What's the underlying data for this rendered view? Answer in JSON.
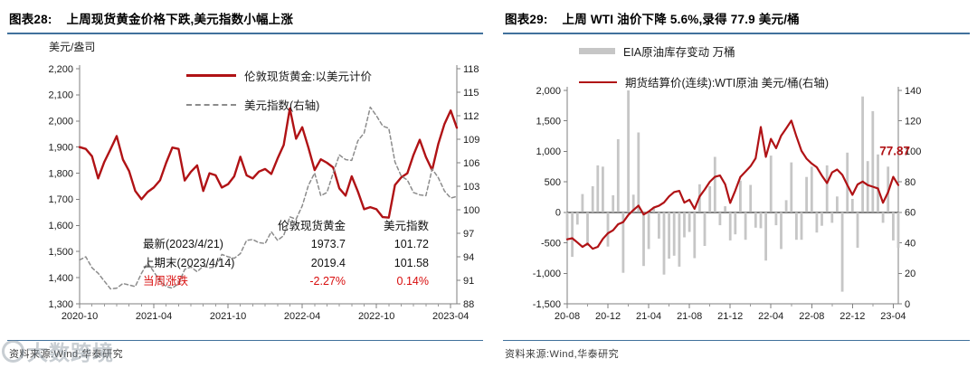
{
  "watermark": {
    "text": "大数跨境"
  },
  "colors": {
    "line_red": "#B01215",
    "table_red": "#D80D0D",
    "bar_gray": "#C6C6C6",
    "dash_gray": "#8C8C8C",
    "rule_blue": "#41719C",
    "axis_gray": "#7F7F7F"
  },
  "panels": {
    "left": {
      "fig_label": "图表28:",
      "title": "上周现货黄金价格下跌,美元指数小幅上涨",
      "unit_label": "美元/盎司",
      "legend": [
        {
          "label": "伦敦现货黄金:以美元计价"
        },
        {
          "label": "美元指数(右轴)"
        }
      ],
      "table": {
        "headers": [
          "伦敦现货黄金",
          "美元指数"
        ],
        "rows": [
          {
            "label": "最新(2023/4/21)",
            "gold": "1973.7",
            "usd": "101.72"
          },
          {
            "label": "上期末(2023/4/14)",
            "gold": "2019.4",
            "usd": "101.58"
          },
          {
            "label": "当周涨跌",
            "gold": "-2.27%",
            "usd": "0.14%"
          }
        ]
      },
      "source": "资料来源:Wind,华泰研究"
    },
    "right": {
      "fig_label": "图表29:",
      "title": "上周 WTI 油价下降 5.6%,录得 77.9 美元/桶",
      "legend": [
        {
          "label": "EIA原油库存变动 万桶"
        },
        {
          "label": "期货结算价(连续):WTI原油 美元/桶(右轴)"
        }
      ],
      "source": "资料来源:Wind,华泰研究"
    }
  },
  "chart_data": [
    {
      "type": "line",
      "title": "上周现货黄金价格下跌,美元指数小幅上涨",
      "x_tick_labels": [
        "2020-10",
        "2021-04",
        "2021-10",
        "2022-04",
        "2022-10",
        "2023-04"
      ],
      "x_tick_indices": [
        0,
        12,
        24,
        36,
        48,
        60
      ],
      "x_minor_every": 2,
      "grid": false,
      "legend_position": "top-center",
      "y_left": {
        "min": 1300,
        "max": 2200,
        "step": 100,
        "format": "comma",
        "unit": "美元/盎司"
      },
      "y_right": {
        "min": 88,
        "max": 118,
        "step": 3
      },
      "series": [
        {
          "key": "gold",
          "name": "伦敦现货黄金:以美元计价",
          "axis": "left",
          "style": "solid",
          "color": "#B01215",
          "width": 2.4,
          "values": [
            1900,
            1893,
            1865,
            1780,
            1843,
            1892,
            1942,
            1852,
            1808,
            1732,
            1700,
            1728,
            1745,
            1773,
            1840,
            1898,
            1893,
            1772,
            1805,
            1830,
            1732,
            1800,
            1792,
            1745,
            1758,
            1788,
            1863,
            1792,
            1780,
            1806,
            1816,
            1797,
            1856,
            1908,
            2048,
            1932,
            1976,
            1898,
            1812,
            1853,
            1840,
            1822,
            1742,
            1714,
            1788,
            1730,
            1662,
            1670,
            1662,
            1632,
            1630,
            1755,
            1784,
            1800,
            1870,
            1928,
            1862,
            1812,
            1912,
            1988,
            2040,
            1974
          ]
        },
        {
          "key": "usd_index",
          "name": "美元指数(右轴)",
          "axis": "right",
          "style": "dashed",
          "color": "#8C8C8C",
          "width": 1.5,
          "values": [
            93.6,
            94.0,
            92.6,
            91.9,
            90.9,
            89.9,
            90.0,
            90.6,
            90.4,
            90.2,
            91.9,
            93.2,
            92.1,
            90.9,
            90.2,
            90.0,
            90.6,
            92.4,
            92.7,
            92.1,
            92.8,
            92.6,
            92.7,
            94.3,
            94.0,
            93.8,
            94.4,
            96.1,
            96.2,
            95.8,
            95.7,
            97.2,
            96.1,
            96.7,
            99.1,
            98.8,
            100.5,
            103.1,
            104.7,
            101.8,
            102.2,
            104.7,
            107.0,
            106.4,
            106.3,
            108.8,
            109.8,
            113.1,
            112.0,
            110.7,
            110.4,
            106.1,
            104.3,
            103.8,
            102.2,
            101.9,
            101.8,
            105.2,
            104.1,
            102.4,
            101.5,
            101.7
          ]
        }
      ],
      "stats_table": {
        "latest_date": "2023/4/21",
        "latest_gold": 1973.7,
        "latest_usd": 101.72,
        "prev_date": "2023/4/14",
        "prev_gold": 2019.4,
        "prev_usd": 101.58,
        "wow_gold": "-2.27%",
        "wow_usd": "0.14%"
      }
    },
    {
      "type": "bar+line",
      "title": "上周 WTI 油价下降 5.6%,录得 77.9 美元/桶",
      "x_tick_labels": [
        "20-08",
        "20-12",
        "21-04",
        "21-08",
        "21-12",
        "22-04",
        "22-08",
        "22-12",
        "23-04"
      ],
      "x_tick_indices": [
        0,
        8,
        16,
        24,
        32,
        40,
        48,
        56,
        64
      ],
      "x_minor_every": 4,
      "grid": false,
      "zero_line": true,
      "legend_position": "top-left",
      "y_left": {
        "min": -1500,
        "max": 2000,
        "step": 500,
        "format": "comma",
        "unit": "万桶"
      },
      "y_right": {
        "min": 0,
        "max": 140,
        "step": 20,
        "unit": "美元/桶"
      },
      "series": [
        {
          "key": "eia_inventory",
          "name": "EIA原油库存变动 万桶",
          "type": "bar",
          "axis": "left",
          "color": "#C6C6C6",
          "values": [
            -450,
            -730,
            -200,
            300,
            -550,
            430,
            770,
            750,
            -560,
            280,
            1200,
            -990,
            2000,
            290,
            1310,
            -880,
            -600,
            90,
            -430,
            -1020,
            -760,
            -710,
            -890,
            -410,
            -320,
            -750,
            460,
            -550,
            430,
            910,
            -210,
            100,
            -460,
            -360,
            520,
            -450,
            450,
            -250,
            -260,
            -790,
            930,
            -210,
            -600,
            200,
            820,
            -450,
            -450,
            580,
            750,
            -330,
            -220,
            770,
            -170,
            260,
            -1300,
            980,
            220,
            -580,
            1900,
            840,
            1660,
            950,
            -170,
            750,
            -460,
            -580
          ]
        },
        {
          "key": "wti",
          "name": "期货结算价(连续):WTI原油 美元/桶(右轴)",
          "type": "line",
          "axis": "right",
          "style": "solid",
          "color": "#B01215",
          "width": 2.2,
          "values": [
            42.3,
            43.0,
            40.2,
            37.3,
            39.5,
            36.1,
            37.4,
            42.6,
            46.3,
            48.2,
            52.2,
            53.6,
            58.3,
            61.5,
            64.4,
            58.6,
            60.5,
            63.1,
            64.3,
            66.5,
            70.5,
            73.3,
            74.1,
            66.4,
            68.3,
            62.3,
            70.4,
            75.0,
            80.1,
            83.3,
            84.2,
            78.4,
            66.2,
            74.3,
            83.2,
            86.8,
            90.3,
            95.5,
            116.0,
            96.4,
            108.2,
            102.1,
            110.3,
            115.1,
            120.2,
            109.8,
            100.3,
            95.2,
            92.0,
            89.6,
            84.1,
            79.2,
            86.2,
            88.1,
            84.6,
            77.9,
            71.5,
            78.3,
            80.2,
            77.9,
            76.8,
            75.7,
            66.3,
            73.2,
            83.3,
            77.87
          ]
        }
      ],
      "annotation": {
        "text": "77.87",
        "value": 77.87,
        "color": "#B01215",
        "y_axis_value": 100
      }
    }
  ]
}
